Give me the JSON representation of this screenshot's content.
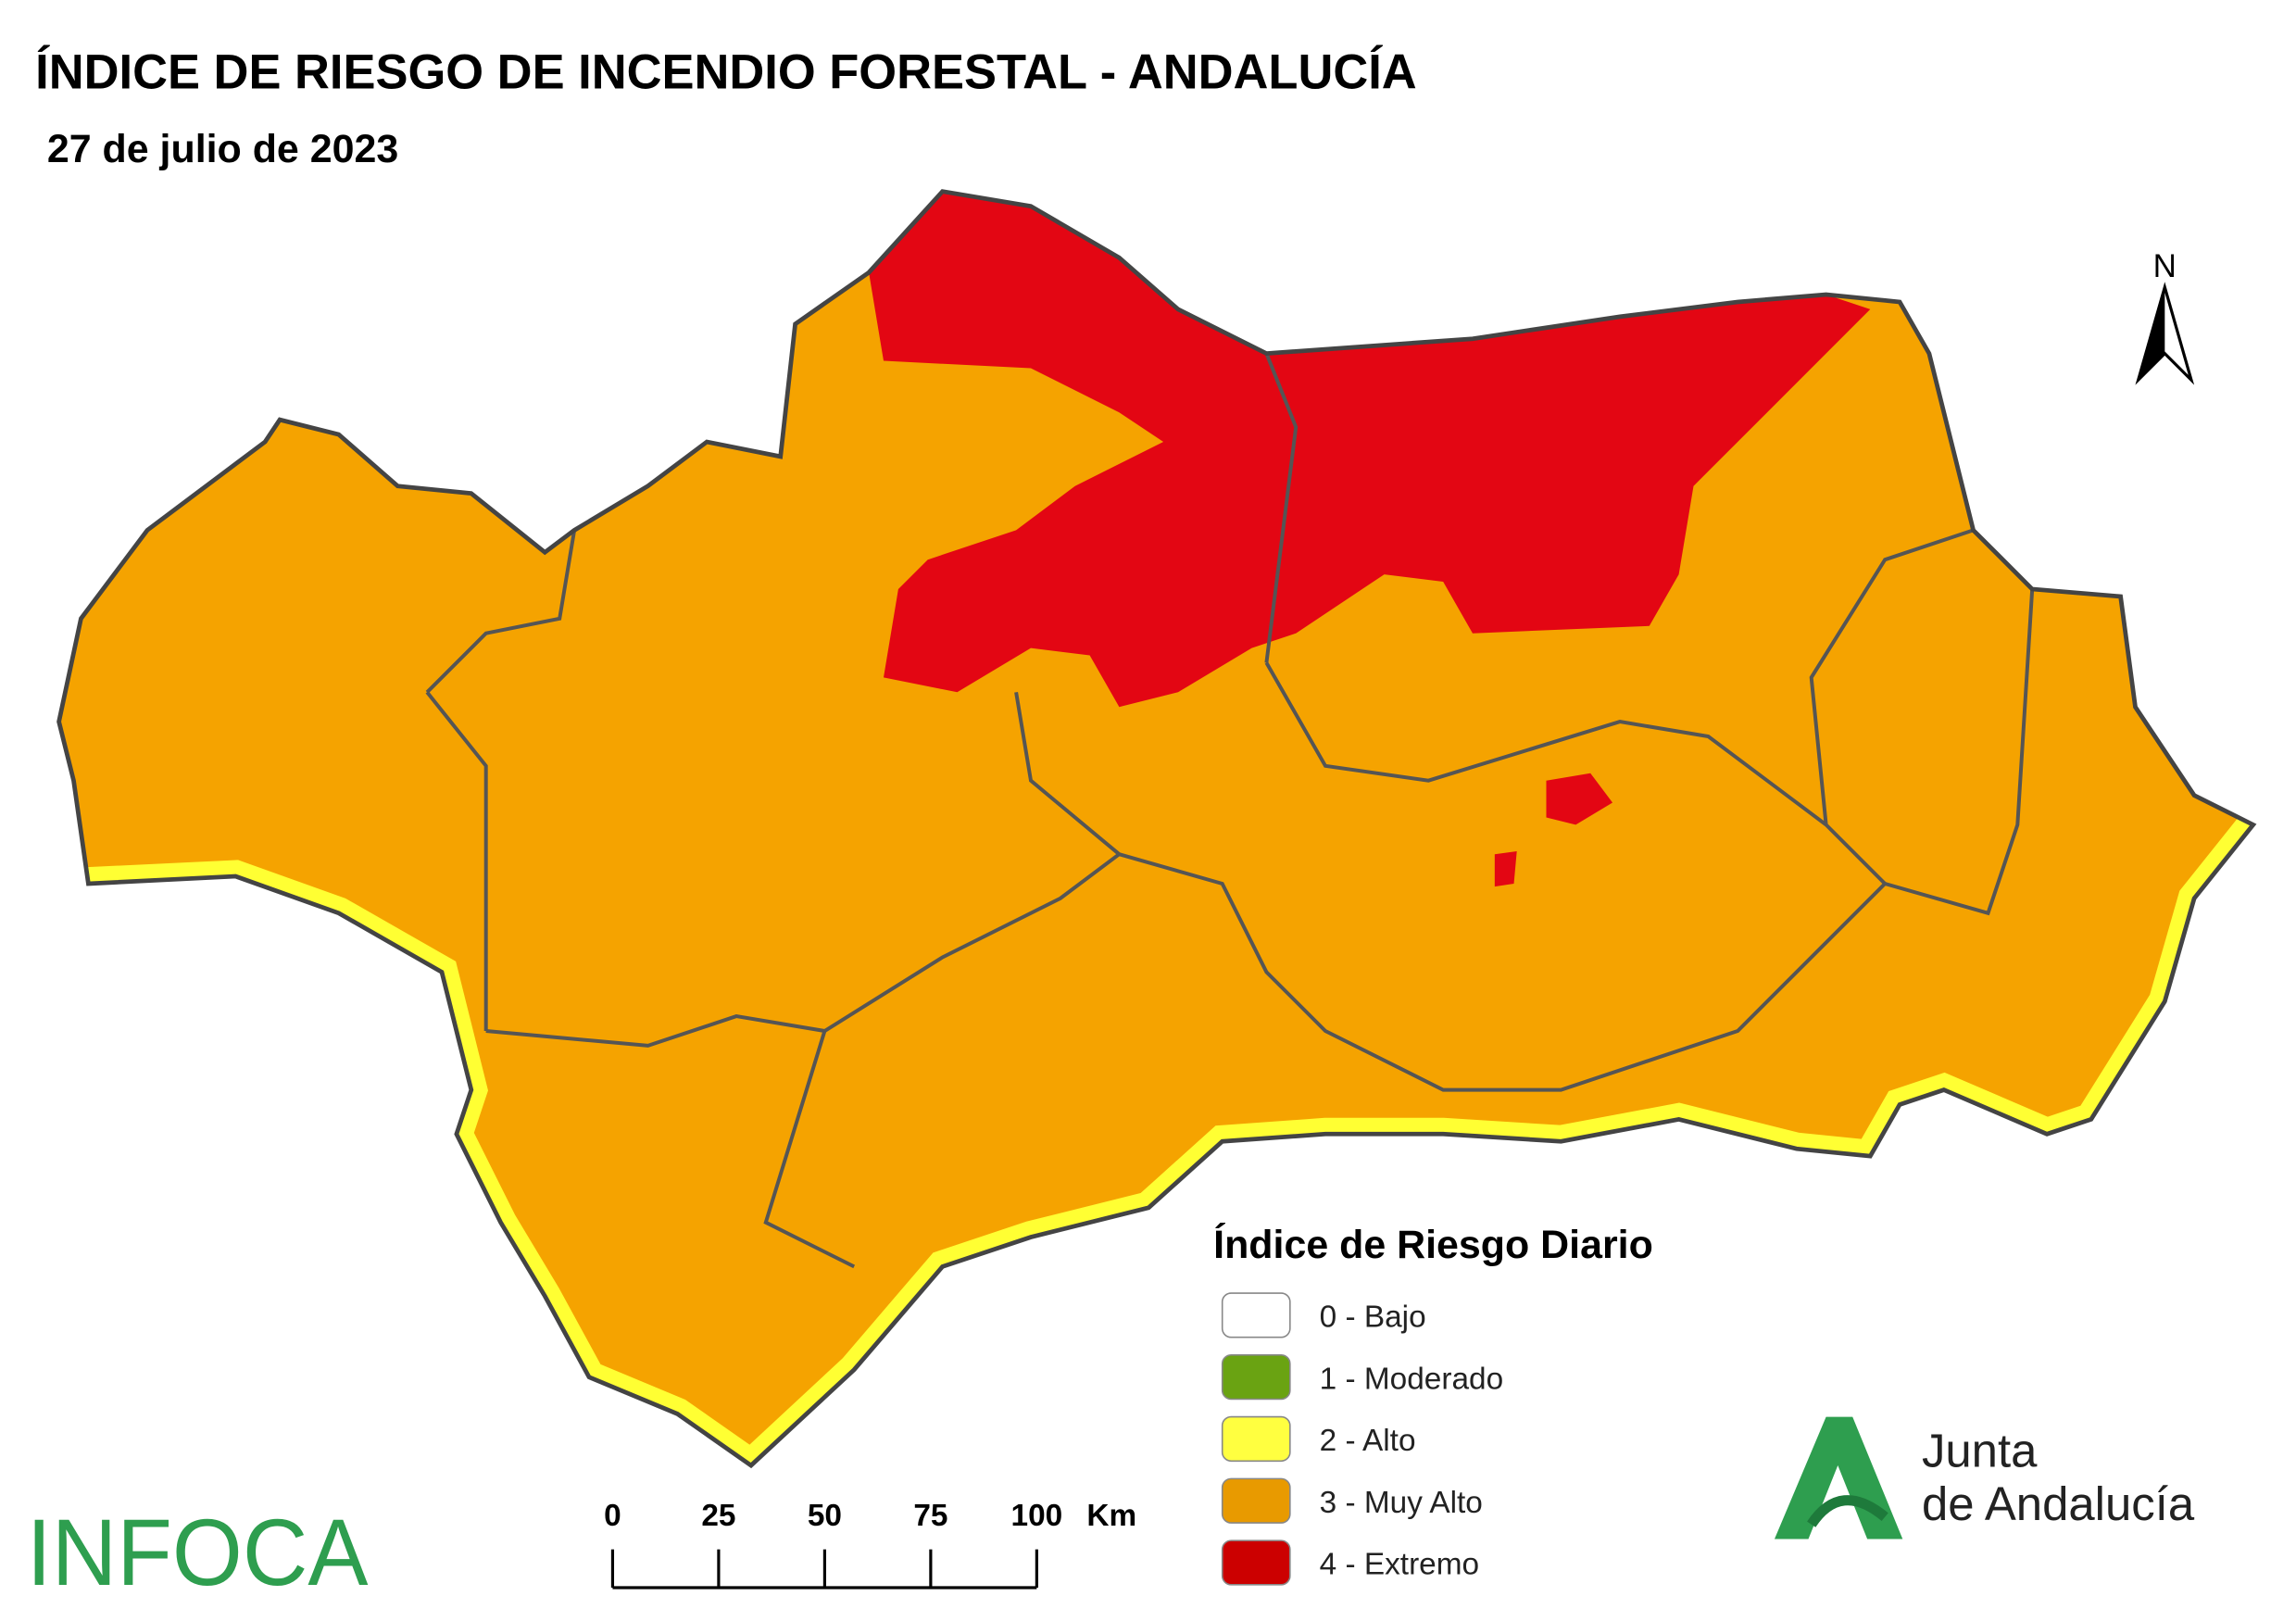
{
  "header": {
    "title": "ÍNDICE DE RIESGO DE INCENDIO FORESTAL - ANDALUCÍA",
    "date": "27 de julio de 2023"
  },
  "north_arrow": {
    "label": "N"
  },
  "legend": {
    "title": "Índice de Riesgo Diario",
    "items": [
      {
        "label": "0 - Bajo",
        "color": "#ffffff"
      },
      {
        "label": "1 - Moderado",
        "color": "#6aa312"
      },
      {
        "label": "2 - Alto",
        "color": "#ffff40"
      },
      {
        "label": "3 - Muy Alto",
        "color": "#e89a00"
      },
      {
        "label": "4 - Extremo",
        "color": "#cc0000"
      }
    ]
  },
  "scale_bar": {
    "ticks": [
      0,
      25,
      50,
      75,
      100
    ],
    "unit": "Km"
  },
  "logos": {
    "infoca": "INFOCA",
    "junta": [
      "Junta",
      "de Andalucía"
    ]
  }
}
